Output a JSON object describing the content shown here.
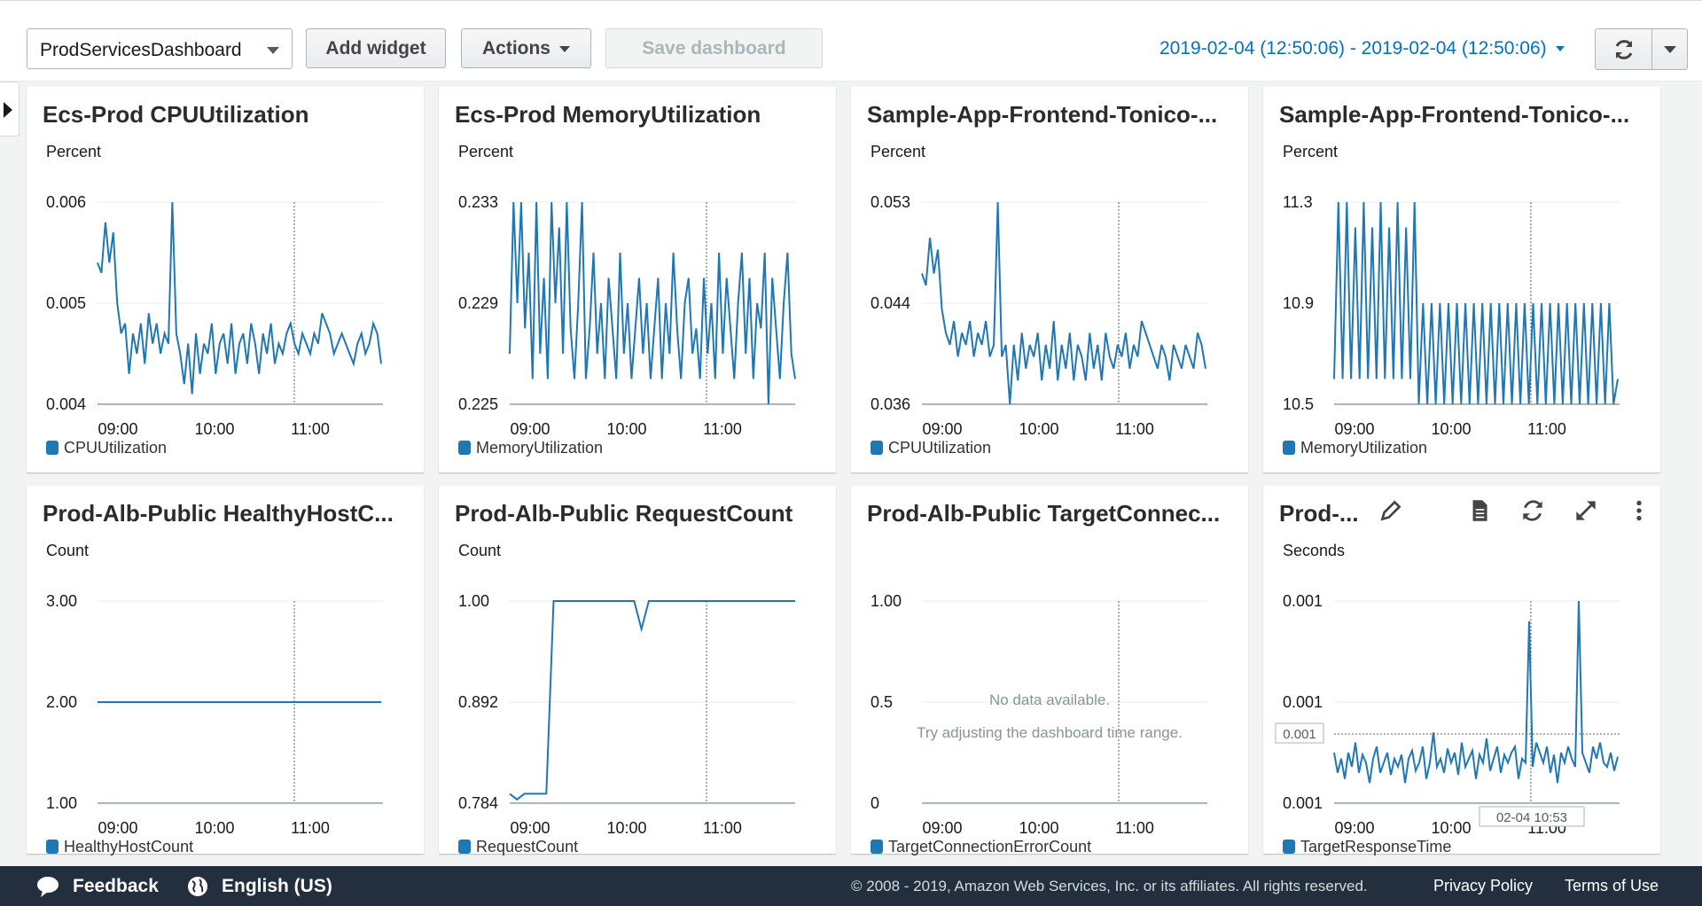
{
  "toolbar": {
    "dashboard_name": "ProdServicesDashboard",
    "add_widget": "Add widget",
    "actions": "Actions",
    "save_dashboard": "Save dashboard",
    "time_range": "2019-02-04 (12:50:06) - 2019-02-04 (12:50:06)"
  },
  "widgets": [
    {
      "title": "Ecs-Prod CPUUtilization",
      "unit": "Percent",
      "legend": "CPUUtilization"
    },
    {
      "title": "Ecs-Prod MemoryUtilization",
      "unit": "Percent",
      "legend": "MemoryUtilization"
    },
    {
      "title": "Sample-App-Frontend-Tonico-...",
      "unit": "Percent",
      "legend": "CPUUtilization"
    },
    {
      "title": "Sample-App-Frontend-Tonico-...",
      "unit": "Percent",
      "legend": "MemoryUtilization"
    },
    {
      "title": "Prod-Alb-Public HealthyHostC...",
      "unit": "Count",
      "legend": "HealthyHostCount"
    },
    {
      "title": "Prod-Alb-Public RequestCount",
      "unit": "Count",
      "legend": "RequestCount"
    },
    {
      "title": "Prod-Alb-Public TargetConnec...",
      "unit": "",
      "legend": "TargetConnectionErrorCount"
    },
    {
      "title": "Prod-...",
      "unit": "Seconds",
      "legend": "TargetResponseTime"
    }
  ],
  "widget_tools": [
    "pencil-icon",
    "document-icon",
    "refresh-icon",
    "expand-icon",
    "more-icon"
  ],
  "no_data": {
    "line1": "No data available.",
    "line2": "Try adjusting the dashboard time range."
  },
  "hover": {
    "time": "02-04 10:53",
    "value": "0.001"
  },
  "footer": {
    "feedback": "Feedback",
    "language": "English (US)",
    "copyright": "© 2008 - 2019, Amazon Web Services, Inc. or its affiliates. All rights reserved.",
    "privacy": "Privacy Policy",
    "terms": "Terms of Use"
  },
  "colors": {
    "series": "#1f77b4",
    "link": "#0073bb",
    "footer_bg": "#232f3e"
  },
  "chart_data": [
    {
      "type": "line",
      "x_ticks": [
        "09:00",
        "10:00",
        "11:00"
      ],
      "y_ticks": [
        "0.004",
        "0.005",
        "0.006"
      ],
      "ylim": [
        0.004,
        0.006
      ],
      "series": [
        {
          "name": "CPUUtilization",
          "values": [
            0.0054,
            0.0053,
            0.0058,
            0.0054,
            0.0057,
            0.005,
            0.0047,
            0.0048,
            0.0043,
            0.0047,
            0.0045,
            0.0048,
            0.0044,
            0.0049,
            0.0046,
            0.0048,
            0.0045,
            0.0047,
            0.0046,
            0.006,
            0.0047,
            0.0045,
            0.0042,
            0.0046,
            0.0041,
            0.0047,
            0.0043,
            0.0046,
            0.0045,
            0.0048,
            0.0043,
            0.0046,
            0.0047,
            0.0044,
            0.0048,
            0.0043,
            0.0046,
            0.0047,
            0.0044,
            0.0048,
            0.0046,
            0.0043,
            0.0047,
            0.0045,
            0.0048,
            0.0044,
            0.0046,
            0.0045,
            0.0047,
            0.0048,
            0.0046,
            0.0045,
            0.0047,
            0.0046,
            0.0045,
            0.0047,
            0.0046,
            0.0049,
            0.0048,
            0.0047,
            0.0045,
            0.0046,
            0.0047,
            0.0046,
            0.0045,
            0.0044,
            0.0046,
            0.0047,
            0.0045,
            0.0046,
            0.0048,
            0.0047,
            0.0044
          ]
        }
      ]
    },
    {
      "type": "line",
      "x_ticks": [
        "09:00",
        "10:00",
        "11:00"
      ],
      "y_ticks": [
        "0.225",
        "0.229",
        "0.233"
      ],
      "ylim": [
        0.225,
        0.233
      ],
      "series": [
        {
          "name": "MemoryUtilization",
          "values": [
            0.227,
            0.233,
            0.229,
            0.233,
            0.228,
            0.231,
            0.226,
            0.233,
            0.227,
            0.23,
            0.226,
            0.233,
            0.229,
            0.232,
            0.227,
            0.233,
            0.228,
            0.226,
            0.229,
            0.233,
            0.226,
            0.228,
            0.231,
            0.227,
            0.229,
            0.226,
            0.23,
            0.228,
            0.226,
            0.231,
            0.227,
            0.229,
            0.226,
            0.228,
            0.23,
            0.227,
            0.229,
            0.226,
            0.228,
            0.23,
            0.226,
            0.229,
            0.227,
            0.231,
            0.228,
            0.226,
            0.229,
            0.23,
            0.227,
            0.228,
            0.226,
            0.23,
            0.227,
            0.229,
            0.226,
            0.231,
            0.227,
            0.23,
            0.228,
            0.226,
            0.229,
            0.231,
            0.227,
            0.23,
            0.226,
            0.229,
            0.228,
            0.231,
            0.225,
            0.23,
            0.228,
            0.226,
            0.229,
            0.231,
            0.227,
            0.226
          ]
        }
      ]
    },
    {
      "type": "line",
      "x_ticks": [
        "09:00",
        "10:00",
        "11:00"
      ],
      "y_ticks": [
        "0.036",
        "0.044",
        "0.053"
      ],
      "ylim": [
        0.036,
        0.053
      ],
      "series": [
        {
          "name": "CPUUtilization",
          "values": [
            0.047,
            0.046,
            0.05,
            0.047,
            0.049,
            0.044,
            0.042,
            0.041,
            0.043,
            0.04,
            0.042,
            0.041,
            0.043,
            0.04,
            0.042,
            0.041,
            0.043,
            0.04,
            0.041,
            0.053,
            0.04,
            0.041,
            0.036,
            0.041,
            0.038,
            0.042,
            0.039,
            0.041,
            0.04,
            0.042,
            0.038,
            0.041,
            0.039,
            0.043,
            0.038,
            0.041,
            0.039,
            0.042,
            0.038,
            0.041,
            0.04,
            0.038,
            0.042,
            0.039,
            0.041,
            0.038,
            0.042,
            0.04,
            0.039,
            0.041,
            0.04,
            0.042,
            0.039,
            0.041,
            0.04,
            0.043,
            0.042,
            0.041,
            0.04,
            0.039,
            0.041,
            0.04,
            0.038,
            0.041,
            0.04,
            0.039,
            0.041,
            0.04,
            0.039,
            0.042,
            0.041,
            0.039
          ]
        }
      ]
    },
    {
      "type": "line",
      "x_ticks": [
        "09:00",
        "10:00",
        "11:00"
      ],
      "y_ticks": [
        "10.5",
        "10.9",
        "11.3"
      ],
      "ylim": [
        10.5,
        11.3
      ],
      "series": [
        {
          "name": "MemoryUtilization",
          "values": [
            10.6,
            11.3,
            10.6,
            11.3,
            10.6,
            11.2,
            10.6,
            11.3,
            10.6,
            11.2,
            10.6,
            11.3,
            10.6,
            11.2,
            10.6,
            11.3,
            10.6,
            11.2,
            10.6,
            11.3,
            10.5,
            10.9,
            10.5,
            10.9,
            10.5,
            10.9,
            10.5,
            10.9,
            10.5,
            10.9,
            10.5,
            10.9,
            10.5,
            10.9,
            10.5,
            10.9,
            10.5,
            10.9,
            10.5,
            10.9,
            10.5,
            10.9,
            10.5,
            10.9,
            10.5,
            10.9,
            10.5,
            10.9,
            10.5,
            10.9,
            10.5,
            10.9,
            10.5,
            10.9,
            10.5,
            10.9,
            10.5,
            10.9,
            10.5,
            10.9,
            10.5,
            10.9,
            10.5,
            10.9,
            10.5,
            10.9,
            10.5,
            10.6
          ]
        }
      ]
    },
    {
      "type": "line",
      "x_ticks": [
        "09:00",
        "10:00",
        "11:00"
      ],
      "y_ticks": [
        "1.00",
        "2.00",
        "3.00"
      ],
      "ylim": [
        1,
        3
      ],
      "series": [
        {
          "name": "HealthyHostCount",
          "values": [
            2,
            2,
            2,
            2,
            2,
            2,
            2,
            2,
            2,
            2
          ]
        }
      ]
    },
    {
      "type": "line",
      "x_ticks": [
        "09:00",
        "10:00",
        "11:00"
      ],
      "y_ticks": [
        "0.784",
        "0.892",
        "1.00"
      ],
      "ylim": [
        0.784,
        1.0
      ],
      "series": [
        {
          "name": "RequestCount",
          "values": [
            0.794,
            0.788,
            0.794,
            0.794,
            0.794,
            0.794,
            1.0,
            1.0,
            1.0,
            1.0,
            1.0,
            1.0,
            1.0,
            1.0,
            1.0,
            1.0,
            1.0,
            1.0,
            0.97,
            1.0,
            1.0,
            1.0,
            1.0,
            1.0,
            1.0,
            1.0,
            1.0,
            1.0,
            1.0,
            1.0,
            1.0,
            1.0,
            1.0,
            1.0,
            1.0,
            1.0,
            1.0,
            1.0,
            1.0,
            1.0
          ]
        }
      ]
    },
    {
      "type": "line",
      "x_ticks": [
        "09:00",
        "10:00",
        "11:00"
      ],
      "y_ticks": [
        "0",
        "0.5",
        "1.00"
      ],
      "ylim": [
        0,
        1
      ],
      "series": [
        {
          "name": "TargetConnectionErrorCount",
          "values": []
        }
      ]
    },
    {
      "type": "line",
      "x_ticks": [
        "09:00",
        "10:00",
        "11:00"
      ],
      "y_ticks": [
        "0.001",
        "0.001",
        "0.001"
      ],
      "ylim": [
        0,
        1
      ],
      "series": [
        {
          "name": "TargetResponseTime",
          "values": [
            0.25,
            0.15,
            0.22,
            0.12,
            0.25,
            0.18,
            0.3,
            0.15,
            0.24,
            0.2,
            0.1,
            0.22,
            0.28,
            0.15,
            0.2,
            0.25,
            0.14,
            0.22,
            0.18,
            0.24,
            0.1,
            0.22,
            0.26,
            0.16,
            0.2,
            0.28,
            0.12,
            0.2,
            0.35,
            0.18,
            0.22,
            0.15,
            0.27,
            0.2,
            0.25,
            0.14,
            0.3,
            0.18,
            0.22,
            0.26,
            0.12,
            0.24,
            0.2,
            0.32,
            0.16,
            0.22,
            0.28,
            0.15,
            0.24,
            0.2,
            0.25,
            0.28,
            0.12,
            0.22,
            0.2,
            0.9,
            0.18,
            0.3,
            0.25,
            0.2,
            0.28,
            0.15,
            0.24,
            0.1,
            0.25,
            0.2,
            0.28,
            0.22,
            0.18,
            1.0,
            0.25,
            0.2,
            0.15,
            0.28,
            0.22,
            0.3,
            0.2,
            0.18,
            0.25,
            0.16,
            0.23
          ]
        }
      ]
    }
  ]
}
